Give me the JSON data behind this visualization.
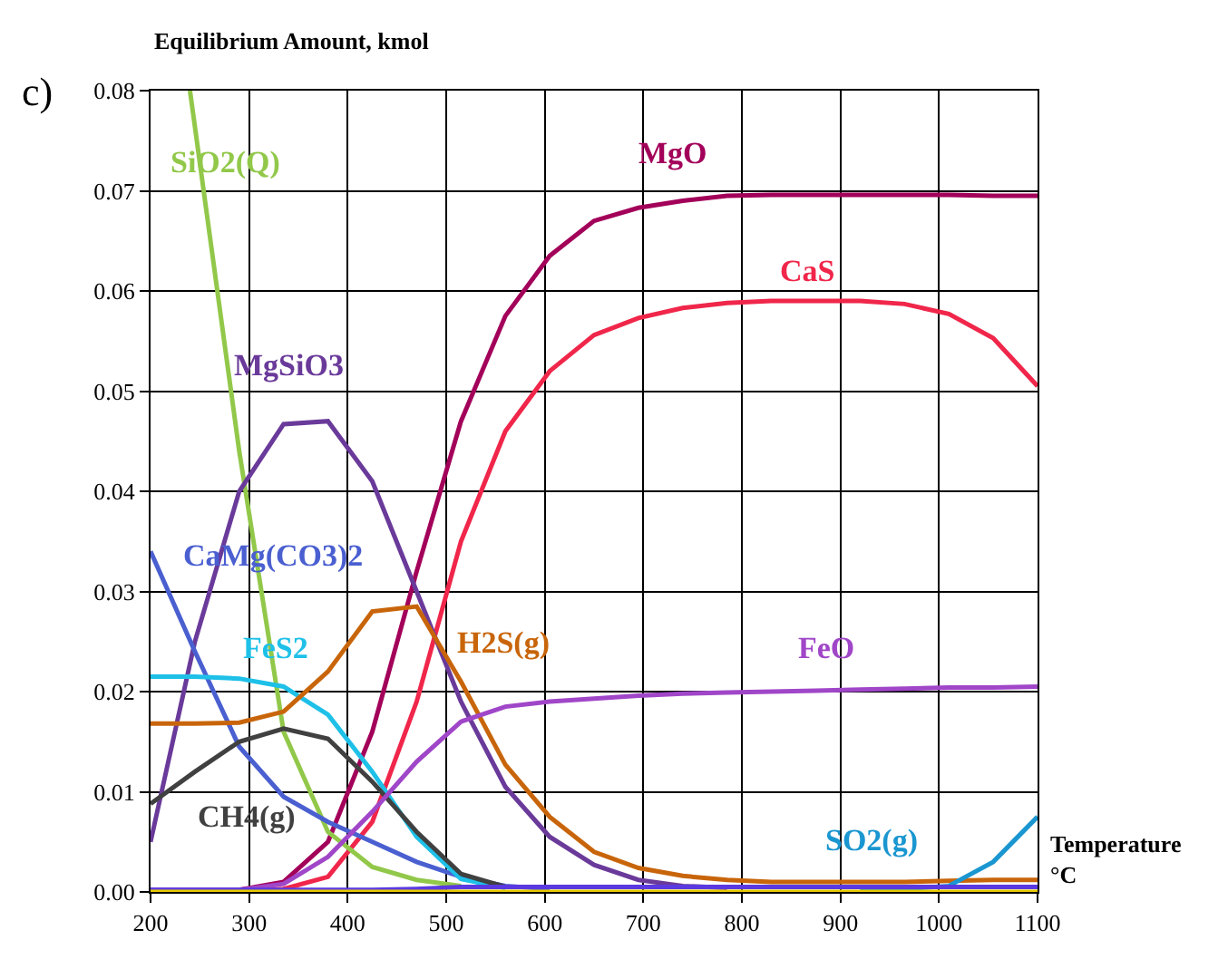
{
  "chart_data": {
    "type": "line",
    "ylabel": "Equilibrium Amount, kmol",
    "xlabel": "Temperature\n°C",
    "annotations": [
      "c)"
    ],
    "x": [
      200,
      245,
      290,
      335,
      380,
      425,
      470,
      515,
      560,
      605,
      650,
      695,
      740,
      785,
      830,
      875,
      920,
      965,
      1010,
      1055,
      1100
    ],
    "xlim": [
      200,
      1100
    ],
    "xticks": [
      200,
      300,
      400,
      500,
      600,
      700,
      800,
      900,
      1000,
      1100
    ],
    "ylim": [
      0,
      0.08
    ],
    "yticks": [
      {
        "value": 0,
        "label": "0.00"
      },
      {
        "value": 0.01,
        "label": "0.01"
      },
      {
        "value": 0.02,
        "label": "0.02"
      },
      {
        "value": 0.03,
        "label": "0.03"
      },
      {
        "value": 0.04,
        "label": "0.04"
      },
      {
        "value": 0.05,
        "label": "0.05"
      },
      {
        "value": 0.06,
        "label": "0.06"
      },
      {
        "value": 0.07,
        "label": "0.07"
      },
      {
        "value": 0.08,
        "label": "0.08"
      }
    ],
    "grid": true,
    "legend": false,
    "marker": "none",
    "line_style": "solid",
    "series": [
      {
        "name": "MgO",
        "color": "#a3005a",
        "values": [
          null,
          null,
          0.0002,
          0.001,
          0.005,
          0.016,
          0.032,
          0.047,
          0.0575,
          0.0635,
          0.067,
          0.0683,
          0.069,
          0.0695,
          0.0696,
          0.0696,
          0.0696,
          0.0696,
          0.0696,
          0.0695,
          0.0695
        ]
      },
      {
        "name": "CaS",
        "color": "#f0264a",
        "values": [
          null,
          null,
          0,
          0.0003,
          0.0015,
          0.007,
          0.019,
          0.035,
          0.046,
          0.052,
          0.0556,
          0.0573,
          0.0583,
          0.0588,
          0.059,
          0.059,
          0.059,
          0.0587,
          0.0577,
          0.0553,
          0.0505
        ]
      },
      {
        "name": "SiO2(Q)",
        "color": "#92c84a",
        "x": [
          240,
          290,
          335,
          380,
          425,
          470,
          515
        ],
        "values": [
          0.08,
          0.044,
          0.016,
          0.006,
          0.0025,
          0.0012,
          0.0006
        ]
      },
      {
        "name": "MgSiO3",
        "color": "#6a3a9a",
        "values": [
          0.005,
          0.025,
          0.04,
          0.0467,
          0.047,
          0.041,
          0.03,
          0.019,
          0.0105,
          0.0055,
          0.0027,
          0.0012,
          0.0006,
          0.0004,
          null,
          null,
          null,
          null,
          null,
          null,
          null
        ]
      },
      {
        "name": "CaMg(CO3)2",
        "color": "#4a5fd0",
        "values": [
          0.034,
          0.024,
          0.0145,
          0.0095,
          0.007,
          0.005,
          0.003,
          0.0015,
          0.0006,
          0.0003,
          null,
          null,
          null,
          null,
          null,
          null,
          null,
          null,
          null,
          null,
          null
        ]
      },
      {
        "name": "FeS2",
        "color": "#1ec0e8",
        "values": [
          0.0215,
          0.0215,
          0.0213,
          0.0205,
          0.0177,
          0.012,
          0.0055,
          0.0013,
          0.0004,
          null,
          null,
          null,
          null,
          null,
          null,
          null,
          null,
          null,
          null,
          null,
          null
        ]
      },
      {
        "name": "H2S(g)",
        "color": "#c8650a",
        "values": [
          0.0168,
          0.0168,
          0.0169,
          0.018,
          0.022,
          0.028,
          0.0285,
          0.021,
          0.0127,
          0.0075,
          0.004,
          0.0024,
          0.0016,
          0.0012,
          0.001,
          0.001,
          0.001,
          0.001,
          0.0011,
          0.0012,
          0.0012
        ]
      },
      {
        "name": "CH4(g)",
        "color": "#404040",
        "values": [
          0.0088,
          0.012,
          0.015,
          0.0163,
          0.0153,
          0.011,
          0.006,
          0.0018,
          0.0005,
          null,
          null,
          null,
          null,
          null,
          null,
          null,
          null,
          null,
          null,
          null,
          null
        ]
      },
      {
        "name": "FeO",
        "color": "#a046c8",
        "values": [
          0.0002,
          0.0002,
          0.0002,
          0.0008,
          0.0035,
          0.008,
          0.013,
          0.017,
          0.0185,
          0.019,
          0.0193,
          0.0196,
          0.0198,
          0.0199,
          0.02,
          0.0201,
          0.0202,
          0.0203,
          0.0204,
          0.0204,
          0.0205
        ]
      },
      {
        "name": "SO2(g)",
        "color": "#1a96d0",
        "values": [
          null,
          null,
          null,
          null,
          null,
          null,
          null,
          null,
          null,
          null,
          null,
          null,
          null,
          null,
          null,
          null,
          0.0002,
          0.0003,
          0.0006,
          0.003,
          0.0075
        ]
      },
      {
        "color": "#5a3ae0",
        "values": [
          0.0002,
          0.0002,
          0.0002,
          0.0002,
          0.0002,
          0.0002,
          0.0003,
          0.0005,
          0.0005,
          0.0005,
          0.0005,
          0.0005,
          0.0005,
          0.0005,
          0.0005,
          0.0005,
          0.0005,
          0.0005,
          0.0005,
          0.0005,
          0.0005
        ]
      },
      {
        "color": "#e8c800",
        "values": [
          0,
          0,
          0,
          0,
          0,
          0,
          0,
          0,
          0,
          0,
          0,
          0,
          0,
          0,
          0,
          0,
          0,
          0,
          0,
          0,
          0
        ]
      }
    ]
  }
}
